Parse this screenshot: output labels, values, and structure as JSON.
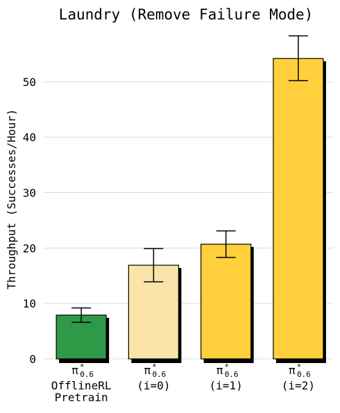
{
  "chart_data": {
    "type": "bar",
    "title": "Laundry (Remove Failure Mode)",
    "xlabel": "",
    "ylabel": "Throughput (Successes/Hour)",
    "ylim": [
      -1.5,
      60
    ],
    "yticks": [
      0,
      10,
      20,
      30,
      40,
      50
    ],
    "grid": "horizontal",
    "legend": "none",
    "categories": [
      {
        "symbol": "π",
        "sup": "*",
        "sub": "0.6",
        "lines": [
          "OfflineRL",
          "Pretrain"
        ]
      },
      {
        "symbol": "π",
        "sup": "*",
        "sub": "0.6",
        "lines": [
          "(i=0)"
        ]
      },
      {
        "symbol": "π",
        "sup": "*",
        "sub": "0.6",
        "lines": [
          "(i=1)"
        ]
      },
      {
        "symbol": "π",
        "sup": "*",
        "sub": "0.6",
        "lines": [
          "(i=2)"
        ]
      }
    ],
    "values": [
      7.9,
      16.9,
      20.7,
      54.2
    ],
    "errors": [
      {
        "low": 6.6,
        "high": 9.2
      },
      {
        "low": 13.9,
        "high": 19.9
      },
      {
        "low": 18.3,
        "high": 23.1
      },
      {
        "low": 50.2,
        "high": 58.3
      }
    ],
    "colors": [
      "#2e9a48",
      "#fbe4aa",
      "#ffd03b",
      "#ffd03b"
    ],
    "shadow_color": "#000000",
    "grid_color": "#d9d9d9"
  }
}
